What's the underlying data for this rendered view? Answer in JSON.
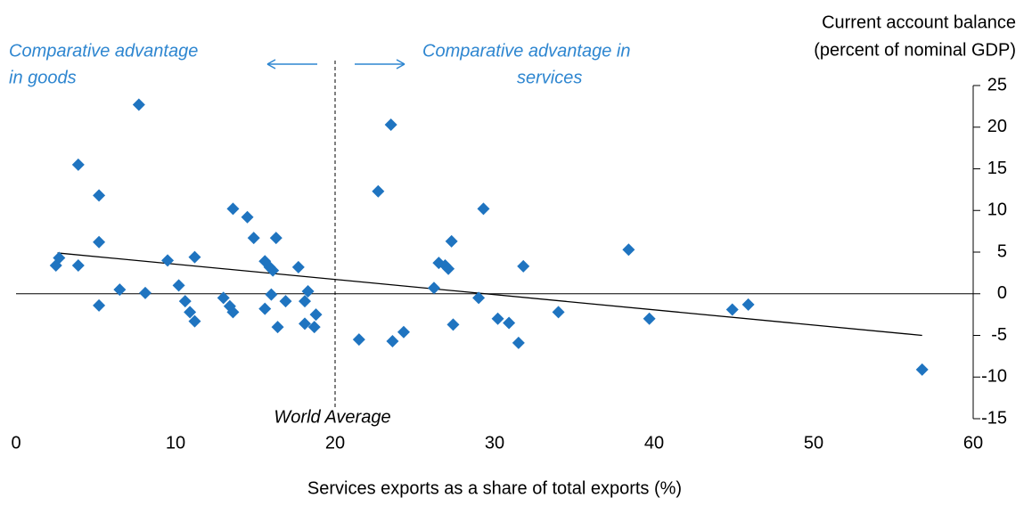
{
  "chart_data": {
    "type": "scatter",
    "y_axis_title": [
      "Current account balance",
      "(percent of nominal GDP)"
    ],
    "x_axis_title": "Services exports as a share of total exports (%)",
    "annotation_left": [
      "Comparative advantage",
      "in goods"
    ],
    "annotation_right": [
      "Comparative advantage in",
      "services"
    ],
    "reference_label": "World Average",
    "reference_x": 20,
    "color": "#1f74c0",
    "x": [
      2.5,
      2.7,
      3.9,
      3.9,
      5.2,
      5.2,
      5.2,
      6.5,
      7.7,
      8.1,
      9.5,
      10.2,
      10.6,
      10.9,
      11.2,
      11.2,
      13.0,
      13.4,
      13.6,
      13.6,
      14.5,
      14.9,
      15.6,
      15.6,
      15.9,
      16.0,
      16.1,
      16.3,
      16.4,
      16.9,
      17.7,
      18.1,
      18.3,
      18.1,
      18.7,
      18.8,
      21.5,
      22.7,
      23.5,
      23.6,
      24.3,
      26.2,
      26.5,
      26.9,
      27.1,
      27.3,
      27.4,
      29.0,
      29.3,
      30.2,
      30.9,
      31.5,
      31.8,
      34.0,
      38.4,
      39.7,
      44.9,
      45.9,
      56.8
    ],
    "y": [
      3.4,
      4.3,
      3.4,
      15.5,
      11.8,
      6.2,
      -1.4,
      0.5,
      22.7,
      0.1,
      4.0,
      1.0,
      -0.9,
      -2.2,
      -3.3,
      4.4,
      -0.5,
      -1.5,
      -2.2,
      10.2,
      9.2,
      6.7,
      -1.8,
      3.9,
      3.2,
      -0.1,
      2.8,
      6.7,
      -4.0,
      -0.9,
      3.2,
      -0.9,
      0.3,
      -3.6,
      -4.0,
      -2.5,
      -5.5,
      12.3,
      20.3,
      -5.7,
      -4.6,
      0.7,
      3.7,
      3.4,
      3.0,
      6.3,
      -3.7,
      -0.5,
      10.2,
      -3.0,
      -3.5,
      -5.9,
      3.3,
      -2.2,
      5.3,
      -3.0,
      -1.9,
      -1.3,
      -9.1
    ],
    "trend": {
      "x": [
        2.6,
        56.8
      ],
      "y": [
        4.9,
        -5.0
      ],
      "color": "#000000"
    },
    "xlim": [
      0,
      60
    ],
    "xticks": [
      0,
      10,
      20,
      30,
      40,
      50,
      60
    ],
    "ylim": [
      -15,
      25
    ],
    "yticks": [
      -15,
      -10,
      -5,
      0,
      5,
      10,
      15,
      20,
      25
    ]
  }
}
